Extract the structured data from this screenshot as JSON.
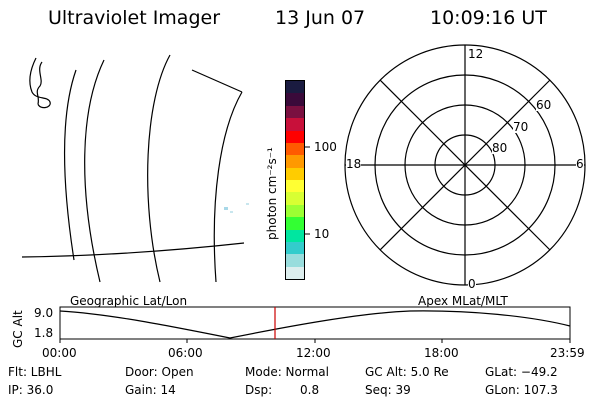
{
  "header": {
    "instrument": "Ultraviolet Imager",
    "date": "13 Jun 07",
    "time": "10:09:16 UT"
  },
  "colorbar": {
    "label": "photon cm⁻²s⁻¹",
    "tick_100": "100",
    "tick_10": "10",
    "colors": [
      "#1a1b40",
      "#3a0a3a",
      "#7a1040",
      "#c8103a",
      "#ff0000",
      "#ff5a00",
      "#ff9900",
      "#ffcc00",
      "#ffff33",
      "#d8ff33",
      "#9cff33",
      "#33ff33",
      "#00e6a0",
      "#33cccc",
      "#99dddd",
      "#ddeeee"
    ]
  },
  "polar_plot": {
    "mlt_labels": {
      "top": "12",
      "right": "6",
      "bottom": "0",
      "left": "18"
    },
    "lat_labels": [
      "60",
      "70",
      "80"
    ]
  },
  "timeline": {
    "left_label": "Geographic Lat/Lon",
    "right_label": "Apex MLat/MLT",
    "y_axis_label": "GC Alt",
    "y_ticks": [
      "9.0",
      "1.8"
    ],
    "x_ticks": [
      "00:00",
      "06:00",
      "12:00",
      "18:00",
      "23:59"
    ],
    "current_time_marker_color": "#cc0000"
  },
  "status": {
    "flt": "Flt: LBHL",
    "ip": "IP: 36.0",
    "door": "Door: Open",
    "gain": "Gain: 14",
    "mode": "Mode: Normal",
    "dsp": "Dsp:",
    "dsp_val": "0.8",
    "gcalt": "GC Alt: 5.0 Re",
    "seq": "Seq: 39",
    "glat": "GLat: −49.2",
    "glon": "GLon: 107.3"
  }
}
